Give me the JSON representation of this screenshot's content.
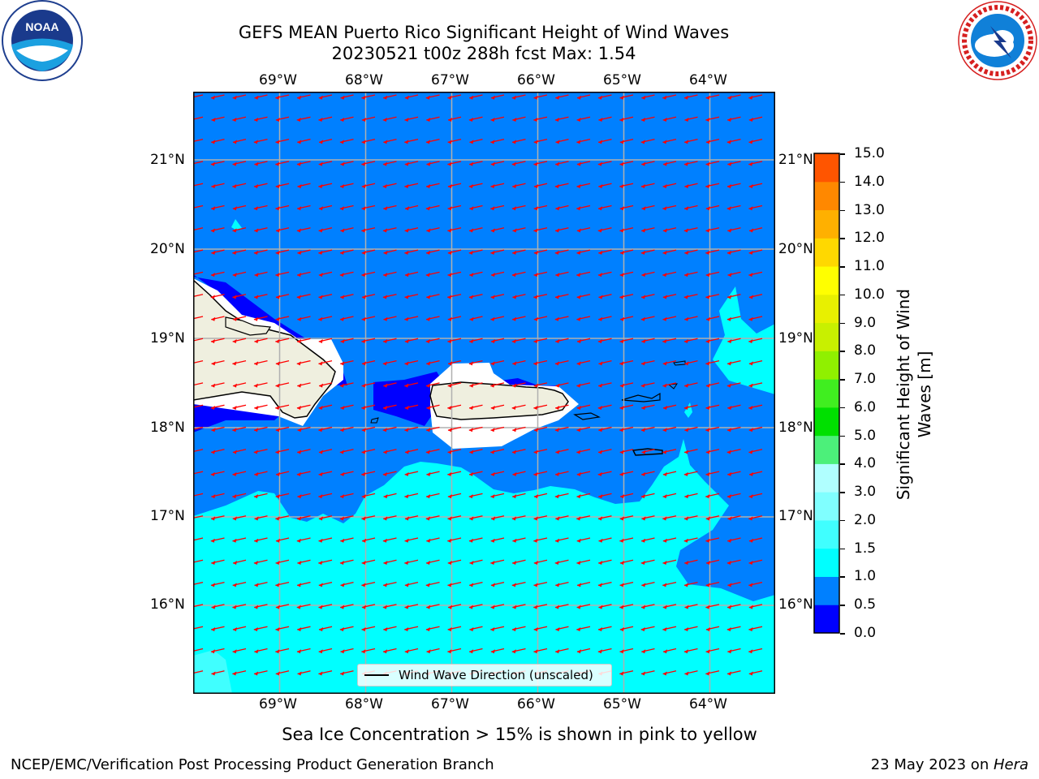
{
  "header": {
    "title_line1": "GEFS MEAN Puerto Rico Significant Height of Wind Waves",
    "title_line2": "20230521 t00z 288h fcst   Max: 1.54"
  },
  "logos": {
    "noara_text": "NOAA",
    "noaa_ring_text": "NATIONAL OCEANIC AND ATMOSPHERIC ADMINISTRATION",
    "noaa_ring_bottom": "U.S. DEPARTMENT OF COMMERCE",
    "nws_ring_text": "NATIONAL WEATHER SERVICE"
  },
  "map": {
    "lon_labels": [
      "69°W",
      "68°W",
      "67°W",
      "66°W",
      "65°W",
      "64°W"
    ],
    "lat_labels": [
      "21°N",
      "20°N",
      "19°N",
      "18°N",
      "17°N",
      "16°N"
    ],
    "legend_label": "Wind Wave Direction (unscaled)",
    "colors": {
      "land": "#efefdf",
      "wave_0_0_5": "#0000ff",
      "wave_0_5_1_0": "#0080ff",
      "wave_1_0_1_5": "#00ffff",
      "wave_1_5_2_0": "#40ffff",
      "arrow": "#ff0000",
      "grid": "#b0b0b0"
    }
  },
  "colorbar": {
    "label_line1": "Significant Height of Wind",
    "label_line2": "Waves [m]",
    "ticks": [
      "15.0",
      "14.0",
      "13.0",
      "12.0",
      "11.0",
      "10.0",
      "9.0",
      "8.0",
      "7.0",
      "6.0",
      "5.0",
      "4.0",
      "3.0",
      "2.0",
      "1.5",
      "1.0",
      "0.5",
      "0.0"
    ],
    "colors": [
      "#0000ff",
      "#0080ff",
      "#00ffff",
      "#40ffff",
      "#80ffff",
      "#b0ffff",
      "#4cf07a",
      "#00e000",
      "#40ee20",
      "#90f000",
      "#c8f000",
      "#e8f000",
      "#ffff00",
      "#ffd800",
      "#ffb000",
      "#ff8800",
      "#ff5500",
      "#ff2a00",
      "#ff0000"
    ]
  },
  "footer": {
    "sea_ice_note": "Sea Ice Concentration > 15% is shown in pink to yellow",
    "branch": "NCEP/EMC/Verification Post Processing Product Generation Branch",
    "date": "23 May 2023 on ",
    "machine": "Hera"
  }
}
